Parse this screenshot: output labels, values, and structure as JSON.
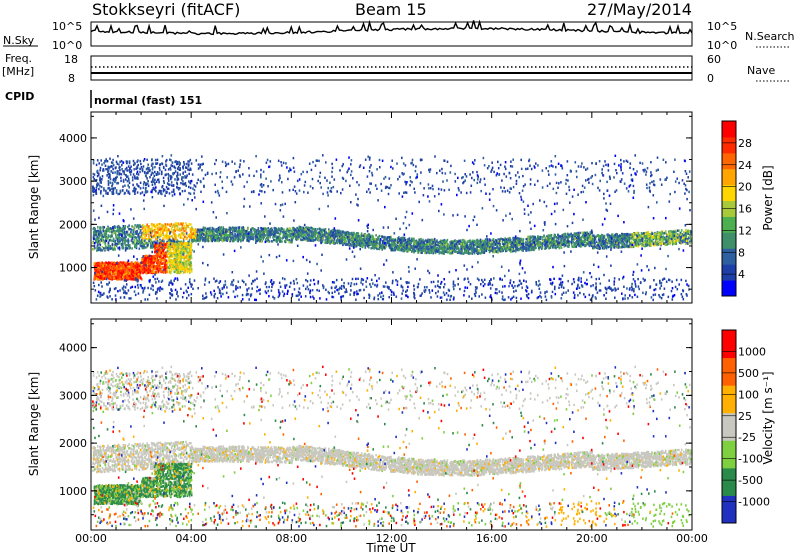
{
  "header": {
    "station": "Stokkseyri (fitACF)",
    "beam": "Beam 15",
    "date": "27/May/2014"
  },
  "strips": {
    "nsky_label": "N.Sky",
    "nsky_ticks": [
      "10^5",
      "10^0"
    ],
    "nsearch_label": "N.Search",
    "freq_label": "Freq.",
    "freq_unit": "[MHz]",
    "freq_ticks": [
      "18",
      "8"
    ],
    "nave_label": "Nave",
    "nave_ticks": [
      "60",
      "0"
    ],
    "cpid_label": "CPID",
    "cpid_value": "normal (fast) 151"
  },
  "chart_data": [
    {
      "type": "heatmap",
      "name": "power",
      "ylabel": "Slant Range [km]",
      "ylim": [
        180,
        4600
      ],
      "yticks": [
        "1000",
        "2000",
        "3000",
        "4000"
      ],
      "colorbar_label": "Power [dB]",
      "colorbar_ticks": [
        "4",
        "8",
        "12",
        "16",
        "20",
        "24",
        "28"
      ],
      "colorbar_range": [
        0,
        32
      ]
    },
    {
      "type": "heatmap",
      "name": "velocity",
      "ylabel": "Slant Range [km]",
      "ylim": [
        180,
        4600
      ],
      "yticks": [
        "1000",
        "2000",
        "3000",
        "4000"
      ],
      "colorbar_label": "Velocity [m s⁻¹]",
      "colorbar_ticks": [
        "1000",
        "500",
        "100",
        "25",
        "-25",
        "-100",
        "-500",
        "-1000"
      ],
      "xlabel": "Time UT",
      "xticks": [
        "00:00",
        "04:00",
        "08:00",
        "12:00",
        "16:00",
        "20:00",
        "00:00"
      ]
    }
  ],
  "colors": {
    "power_scale": [
      "#0000ff",
      "#1f3fa8",
      "#2e5fa0",
      "#3f8f6a",
      "#4caf50",
      "#a8c93a",
      "#ffd700",
      "#ffa500",
      "#ff6600",
      "#ff2a00",
      "#ff0000"
    ],
    "velocity_scale": [
      "#2030c0",
      "#2a8a4a",
      "#7ed040",
      "#c8c8c0",
      "#ffb000",
      "#ff6000",
      "#ff0000"
    ]
  }
}
